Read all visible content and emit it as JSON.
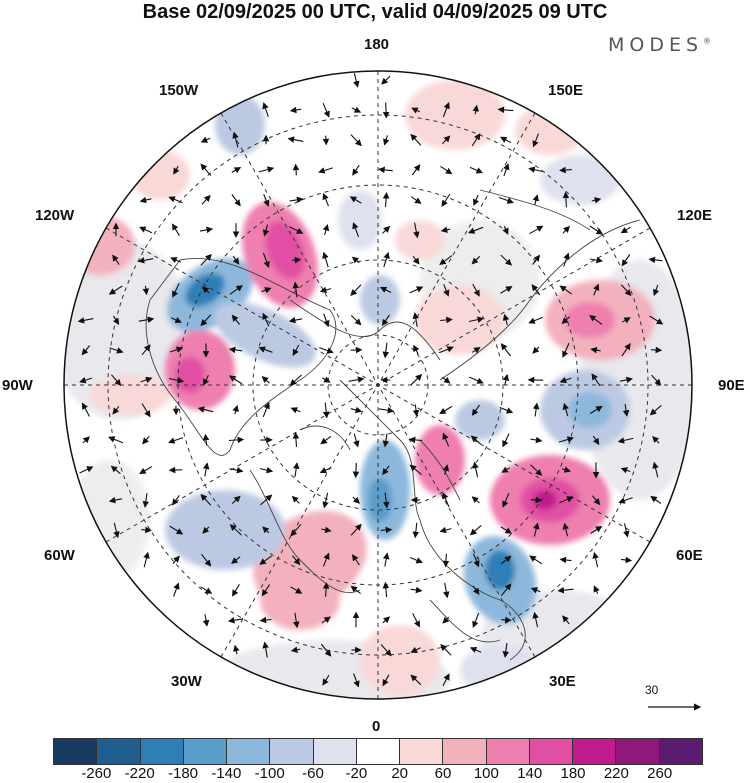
{
  "title": "Base 02/09/2025 00 UTC, valid 04/09/2025 09 UTC",
  "brand": "MODES",
  "brand_mark": "®",
  "longitude_labels": {
    "lon_180": "180",
    "lon_150e": "150E",
    "lon_120e": "120E",
    "lon_90e": "90E",
    "lon_60e": "60E",
    "lon_30e": "30E",
    "lon_0": "0",
    "lon_30w": "30W",
    "lon_60w": "60W",
    "lon_90w": "90W",
    "lon_120w": "120W",
    "lon_150w": "150W"
  },
  "reference_vector": {
    "value": "30"
  },
  "colorbar": {
    "colors": [
      "#173a5e",
      "#1f5f8f",
      "#2e7fb8",
      "#5a9ccb",
      "#8db8dc",
      "#bcc9e3",
      "#dfe1ef",
      "#ffffff",
      "#f9d8d8",
      "#f3b0bd",
      "#ee7fae",
      "#e04fa3",
      "#c01a8f",
      "#901878",
      "#5c1a72"
    ],
    "ticks": [
      "-260",
      "-220",
      "-180",
      "-140",
      "-100",
      "-60",
      "-20",
      "20",
      "60",
      "100",
      "140",
      "180",
      "220",
      "260"
    ]
  }
}
